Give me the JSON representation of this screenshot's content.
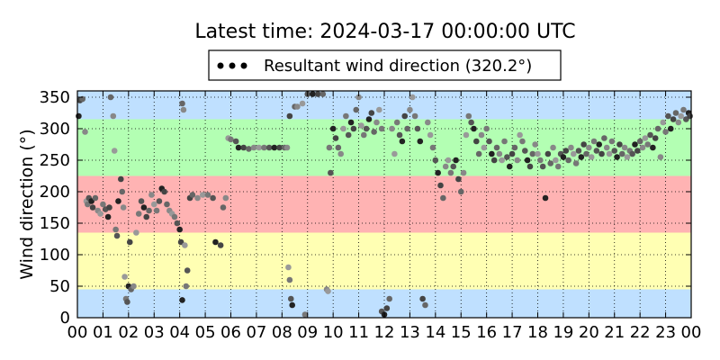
{
  "chart_data": {
    "type": "scatter",
    "title": "Latest time: 2024-03-17 00:00:00 UTC",
    "ylabel": "Wind direction (°)",
    "xlabel": "",
    "xlim": [
      0,
      24
    ],
    "ylim": [
      0,
      360
    ],
    "x_tick_values": [
      0,
      1,
      2,
      3,
      4,
      5,
      6,
      7,
      8,
      9,
      10,
      11,
      12,
      13,
      14,
      15,
      16,
      17,
      18,
      19,
      20,
      21,
      22,
      23,
      24
    ],
    "x_tick_labels": [
      "00",
      "01",
      "02",
      "03",
      "04",
      "05",
      "06",
      "07",
      "08",
      "09",
      "10",
      "11",
      "12",
      "13",
      "14",
      "15",
      "16",
      "17",
      "18",
      "19",
      "20",
      "21",
      "22",
      "23",
      "00"
    ],
    "y_ticks": [
      0,
      50,
      100,
      150,
      200,
      250,
      300,
      350
    ],
    "grid": true,
    "legend": {
      "placement": "top-center",
      "label": "Resultant wind direction (320.2°)"
    },
    "bands": [
      {
        "from": 0,
        "to": 45,
        "color": "#bfe0ff"
      },
      {
        "from": 45,
        "to": 135,
        "color": "#ffffb3"
      },
      {
        "from": 135,
        "to": 225,
        "color": "#ffb3b3"
      },
      {
        "from": 225,
        "to": 315,
        "color": "#b3ffb3"
      },
      {
        "from": 315,
        "to": 360,
        "color": "#bfe0ff"
      }
    ],
    "series": [
      {
        "values": [
          [
            0.05,
            320
          ],
          [
            0.1,
            345
          ],
          [
            0.2,
            347
          ],
          [
            0.3,
            295
          ],
          [
            0.35,
            185
          ],
          [
            0.4,
            180
          ],
          [
            0.45,
            190
          ],
          [
            0.55,
            185
          ],
          [
            0.6,
            175
          ],
          [
            0.7,
            190
          ],
          [
            0.8,
            170
          ],
          [
            0.9,
            165
          ],
          [
            1.0,
            180
          ],
          [
            1.1,
            172
          ],
          [
            1.2,
            160
          ],
          [
            1.25,
            175
          ],
          [
            1.3,
            350
          ],
          [
            1.4,
            320
          ],
          [
            1.45,
            265
          ],
          [
            1.5,
            140
          ],
          [
            1.55,
            130
          ],
          [
            1.6,
            185
          ],
          [
            1.7,
            220
          ],
          [
            1.75,
            200
          ],
          [
            1.8,
            175
          ],
          [
            1.85,
            65
          ],
          [
            1.9,
            30
          ],
          [
            1.95,
            25
          ],
          [
            2.0,
            50
          ],
          [
            2.05,
            120
          ],
          [
            2.1,
            45
          ],
          [
            2.2,
            50
          ],
          [
            2.3,
            135
          ],
          [
            2.4,
            165
          ],
          [
            2.5,
            185
          ],
          [
            2.6,
            175
          ],
          [
            2.7,
            160
          ],
          [
            2.8,
            170
          ],
          [
            2.9,
            195
          ],
          [
            3.0,
            180
          ],
          [
            3.1,
            170
          ],
          [
            3.2,
            185
          ],
          [
            3.3,
            205
          ],
          [
            3.4,
            200
          ],
          [
            3.5,
            180
          ],
          [
            3.6,
            170
          ],
          [
            3.7,
            165
          ],
          [
            3.8,
            160
          ],
          [
            3.9,
            150
          ],
          [
            4.0,
            140
          ],
          [
            4.05,
            120
          ],
          [
            4.1,
            340
          ],
          [
            4.15,
            330
          ],
          [
            4.2,
            115
          ],
          [
            4.25,
            50
          ],
          [
            4.3,
            75
          ],
          [
            4.1,
            28
          ],
          [
            4.4,
            190
          ],
          [
            4.5,
            195
          ],
          [
            4.7,
            190
          ],
          [
            4.9,
            195
          ],
          [
            5.1,
            195
          ],
          [
            5.3,
            190
          ],
          [
            5.4,
            120
          ],
          [
            5.6,
            115
          ],
          [
            5.7,
            175
          ],
          [
            5.8,
            190
          ],
          [
            5.9,
            285
          ],
          [
            6.0,
            283
          ],
          [
            6.2,
            280
          ],
          [
            6.3,
            270
          ],
          [
            6.5,
            270
          ],
          [
            6.7,
            268
          ],
          [
            6.9,
            270
          ],
          [
            7.1,
            270
          ],
          [
            7.3,
            270
          ],
          [
            7.5,
            270
          ],
          [
            7.7,
            270
          ],
          [
            7.9,
            270
          ],
          [
            8.1,
            270
          ],
          [
            8.2,
            270
          ],
          [
            8.25,
            80
          ],
          [
            8.3,
            60
          ],
          [
            8.35,
            30
          ],
          [
            8.4,
            20
          ],
          [
            8.3,
            320
          ],
          [
            8.5,
            335
          ],
          [
            8.6,
            335
          ],
          [
            8.8,
            340
          ],
          [
            8.9,
            5
          ],
          [
            9.0,
            355
          ],
          [
            9.2,
            355
          ],
          [
            9.4,
            355
          ],
          [
            9.6,
            355
          ],
          [
            9.75,
            45
          ],
          [
            9.8,
            42
          ],
          [
            9.85,
            270
          ],
          [
            9.9,
            230
          ],
          [
            10.0,
            300
          ],
          [
            10.1,
            285
          ],
          [
            10.2,
            270
          ],
          [
            10.3,
            260
          ],
          [
            10.4,
            300
          ],
          [
            10.5,
            320
          ],
          [
            10.6,
            290
          ],
          [
            10.7,
            310
          ],
          [
            10.8,
            300
          ],
          [
            10.9,
            330
          ],
          [
            11.0,
            350
          ],
          [
            11.1,
            305
          ],
          [
            11.2,
            290
          ],
          [
            11.3,
            300
          ],
          [
            11.4,
            315
          ],
          [
            11.5,
            325
          ],
          [
            11.6,
            295
          ],
          [
            11.7,
            310
          ],
          [
            11.8,
            330
          ],
          [
            11.9,
            300
          ],
          [
            11.9,
            10
          ],
          [
            12.0,
            5
          ],
          [
            12.1,
            15
          ],
          [
            12.2,
            30
          ],
          [
            12.3,
            300
          ],
          [
            12.4,
            260
          ],
          [
            12.5,
            310
          ],
          [
            12.6,
            290
          ],
          [
            12.7,
            280
          ],
          [
            12.8,
            320
          ],
          [
            12.9,
            300
          ],
          [
            13.0,
            330
          ],
          [
            13.1,
            350
          ],
          [
            13.2,
            320
          ],
          [
            13.3,
            300
          ],
          [
            13.4,
            280
          ],
          [
            13.5,
            30
          ],
          [
            13.6,
            20
          ],
          [
            13.7,
            310
          ],
          [
            13.8,
            290
          ],
          [
            13.9,
            270
          ],
          [
            14.0,
            250
          ],
          [
            14.1,
            230
          ],
          [
            14.2,
            210
          ],
          [
            14.3,
            190
          ],
          [
            14.4,
            240
          ],
          [
            14.5,
            250
          ],
          [
            14.6,
            230
          ],
          [
            14.7,
            240
          ],
          [
            14.8,
            250
          ],
          [
            14.9,
            220
          ],
          [
            15.0,
            200
          ],
          [
            15.1,
            230
          ],
          [
            15.2,
            290
          ],
          [
            15.3,
            320
          ],
          [
            15.4,
            310
          ],
          [
            15.5,
            300
          ],
          [
            15.6,
            280
          ],
          [
            15.7,
            260
          ],
          [
            15.8,
            290
          ],
          [
            15.9,
            270
          ],
          [
            16.0,
            300
          ],
          [
            16.1,
            280
          ],
          [
            16.2,
            260
          ],
          [
            16.3,
            250
          ],
          [
            16.4,
            270
          ],
          [
            16.5,
            260
          ],
          [
            16.6,
            250
          ],
          [
            16.7,
            280
          ],
          [
            16.8,
            255
          ],
          [
            16.9,
            240
          ],
          [
            17.0,
            260
          ],
          [
            17.1,
            270
          ],
          [
            17.2,
            250
          ],
          [
            17.3,
            290
          ],
          [
            17.4,
            280
          ],
          [
            17.5,
            265
          ],
          [
            17.6,
            250
          ],
          [
            17.7,
            240
          ],
          [
            17.8,
            260
          ],
          [
            17.9,
            275
          ],
          [
            18.0,
            260
          ],
          [
            18.1,
            250
          ],
          [
            18.2,
            240
          ],
          [
            18.3,
            190
          ],
          [
            18.4,
            260
          ],
          [
            18.5,
            245
          ],
          [
            18.6,
            270
          ],
          [
            18.7,
            250
          ],
          [
            18.8,
            240
          ],
          [
            18.9,
            260
          ],
          [
            19.0,
            255
          ],
          [
            19.1,
            265
          ],
          [
            19.2,
            250
          ],
          [
            19.3,
            270
          ],
          [
            19.4,
            260
          ],
          [
            19.5,
            245
          ],
          [
            19.6,
            265
          ],
          [
            19.7,
            255
          ],
          [
            19.8,
            275
          ],
          [
            19.9,
            260
          ],
          [
            20.0,
            270
          ],
          [
            20.1,
            255
          ],
          [
            20.2,
            280
          ],
          [
            20.3,
            265
          ],
          [
            20.4,
            275
          ],
          [
            20.5,
            260
          ],
          [
            20.6,
            285
          ],
          [
            20.7,
            270
          ],
          [
            20.8,
            260
          ],
          [
            20.9,
            280
          ],
          [
            21.0,
            265
          ],
          [
            21.1,
            255
          ],
          [
            21.2,
            275
          ],
          [
            21.3,
            260
          ],
          [
            21.4,
            270
          ],
          [
            21.5,
            255
          ],
          [
            21.6,
            265
          ],
          [
            21.7,
            260
          ],
          [
            21.8,
            275
          ],
          [
            21.9,
            265
          ],
          [
            22.0,
            280
          ],
          [
            22.1,
            270
          ],
          [
            22.2,
            285
          ],
          [
            22.3,
            275
          ],
          [
            22.4,
            290
          ],
          [
            22.5,
            270
          ],
          [
            22.6,
            285
          ],
          [
            22.7,
            300
          ],
          [
            22.8,
            255
          ],
          [
            22.9,
            310
          ],
          [
            23.0,
            295
          ],
          [
            23.1,
            320
          ],
          [
            23.2,
            300
          ],
          [
            23.3,
            315
          ],
          [
            23.4,
            325
          ],
          [
            23.5,
            310
          ],
          [
            23.6,
            320
          ],
          [
            23.7,
            330
          ],
          [
            23.8,
            315
          ],
          [
            23.9,
            325
          ],
          [
            23.95,
            320
          ]
        ]
      }
    ]
  }
}
